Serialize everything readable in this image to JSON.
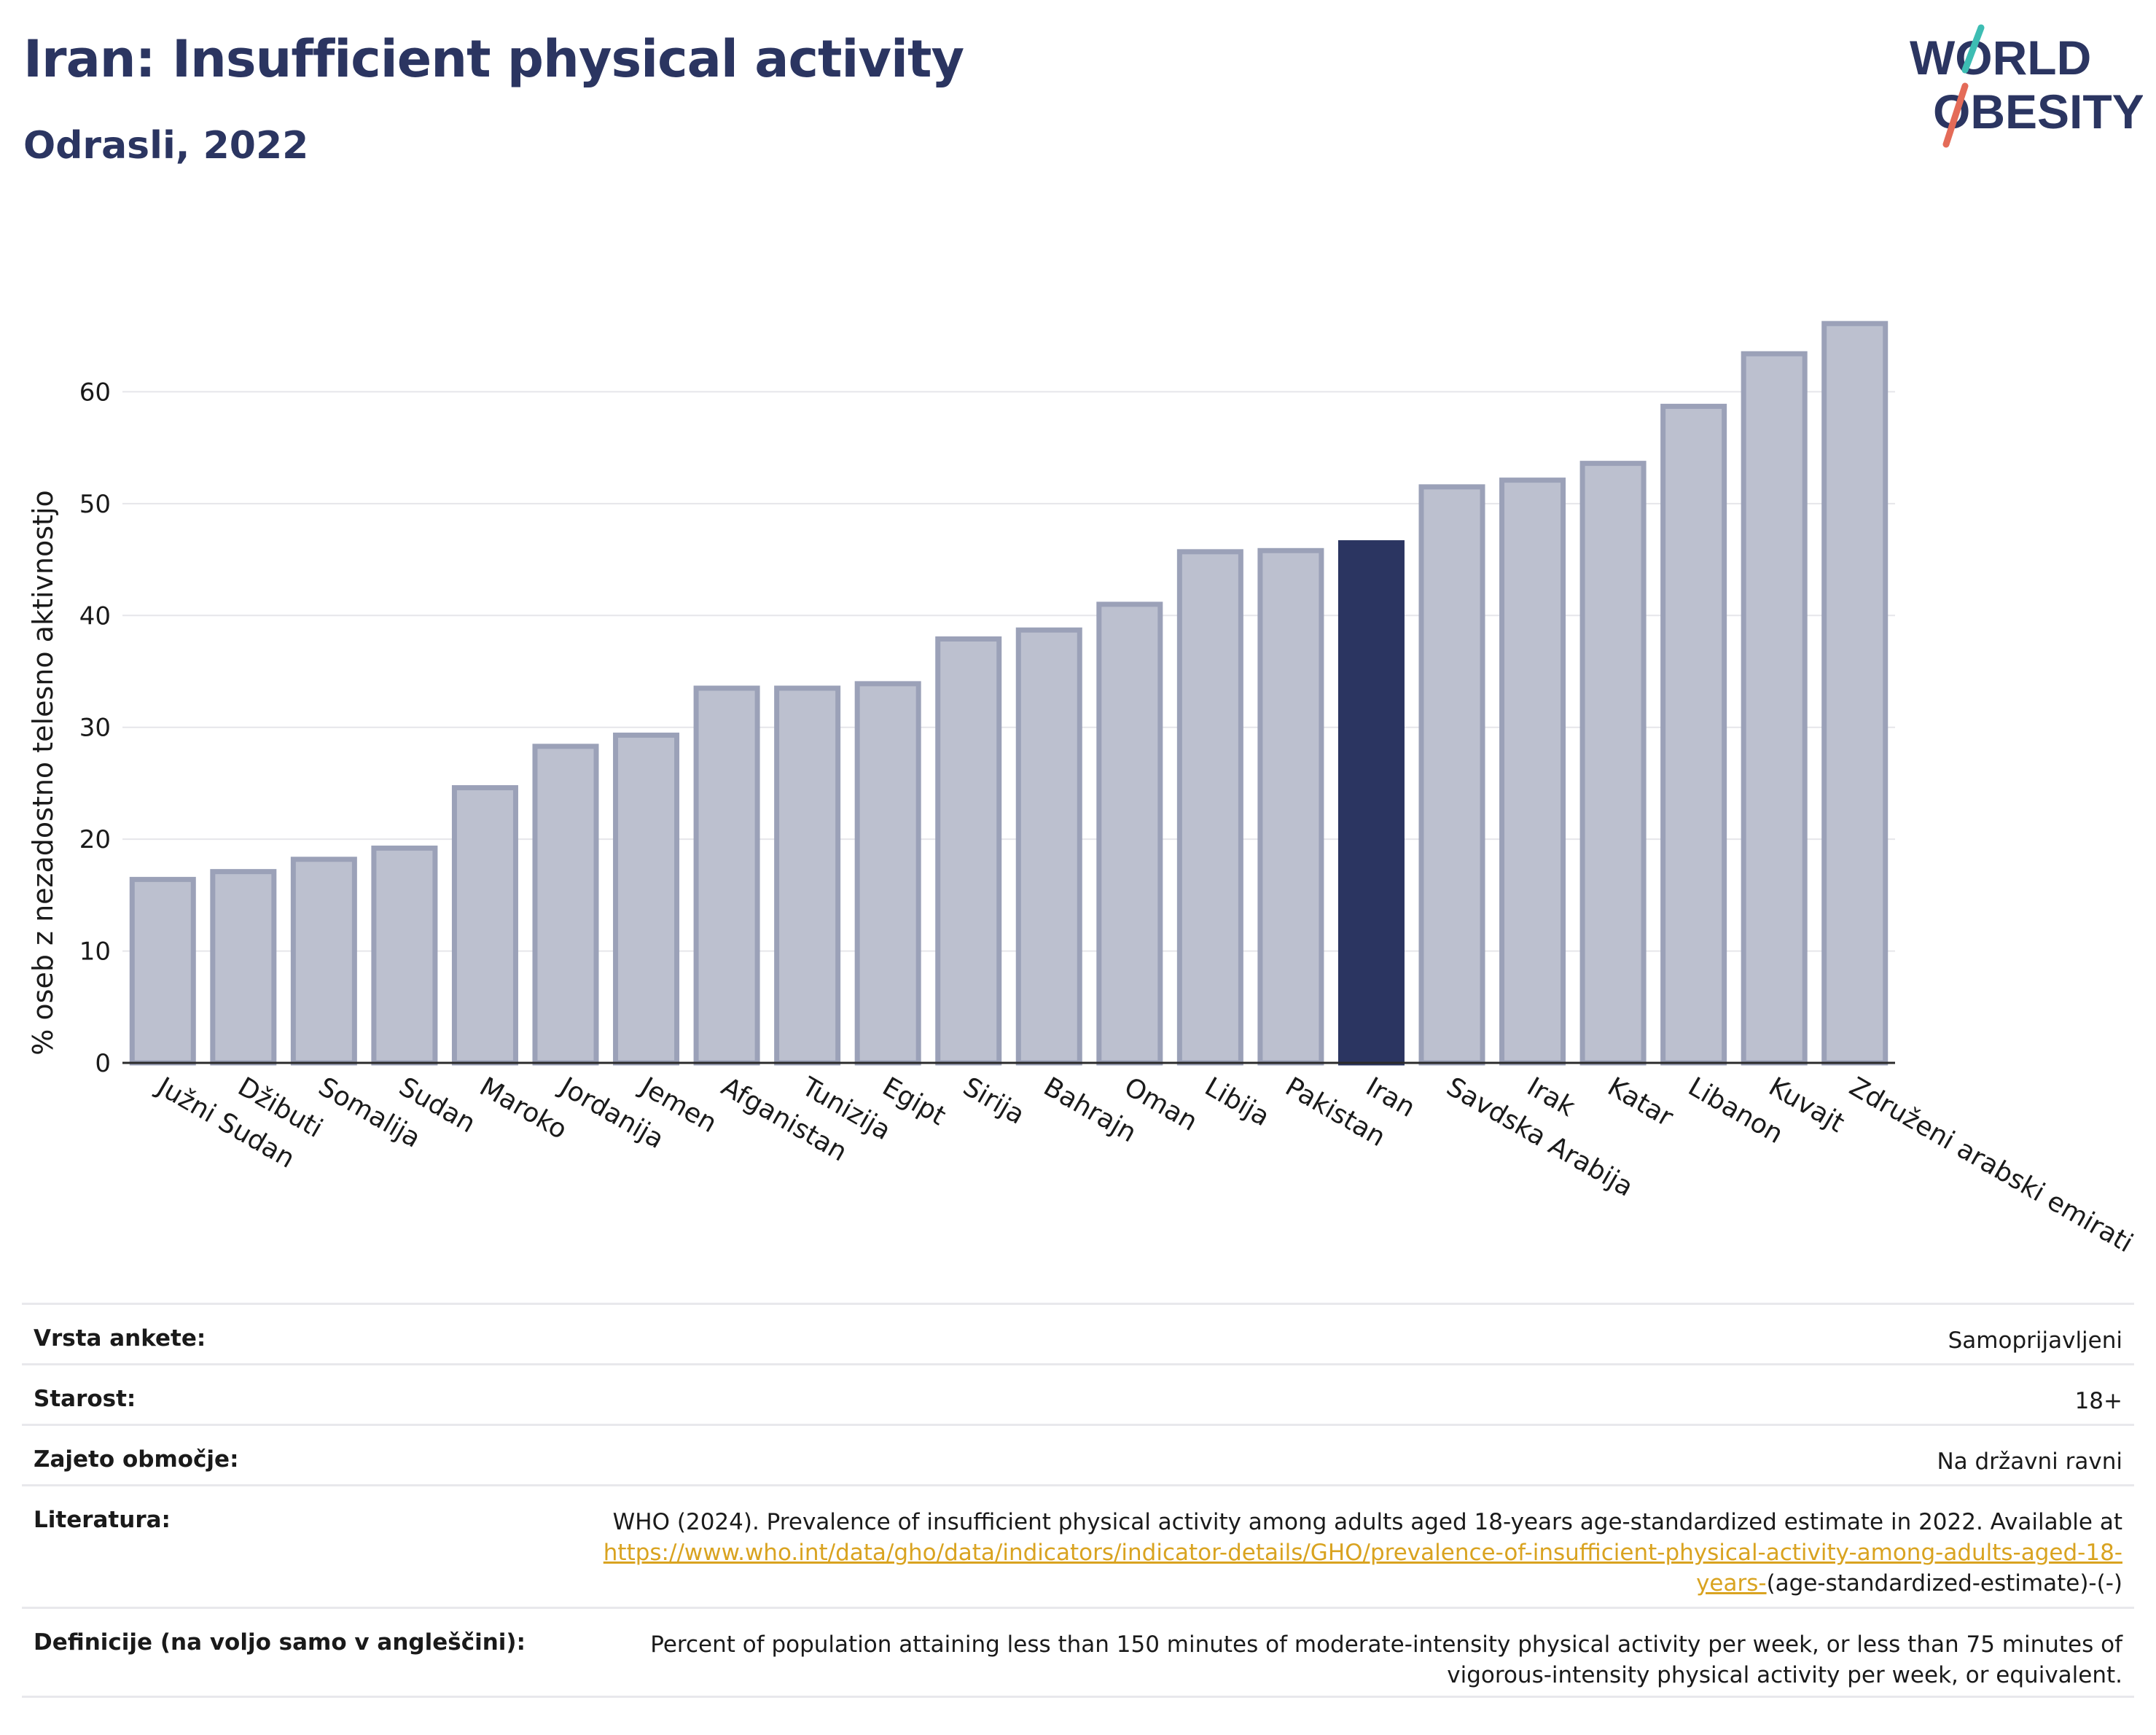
{
  "header": {
    "title": "Iran: Insufficient physical activity",
    "subtitle": "Odrasli, 2022",
    "logo_line1": "WORLD",
    "logo_line2": "OBESITY"
  },
  "chart_data": {
    "type": "bar",
    "categories": [
      "Južni Sudan",
      "Džibuti",
      "Somalija",
      "Sudan",
      "Maroko",
      "Jordanija",
      "Jemen",
      "Afganistan",
      "Tunizija",
      "Egipt",
      "Sirija",
      "Bahrajn",
      "Oman",
      "Libija",
      "Pakistan",
      "Iran",
      "Savdska Arabija",
      "Irak",
      "Katar",
      "Libanon",
      "Kuvajt",
      "Združeni arabski emirati"
    ],
    "values": [
      16.4,
      17.1,
      18.2,
      19.2,
      24.6,
      28.3,
      29.3,
      33.5,
      33.5,
      33.9,
      37.9,
      38.7,
      41.0,
      45.7,
      45.8,
      46.5,
      51.5,
      52.1,
      53.6,
      58.7,
      63.4,
      66.1
    ],
    "highlight": "Iran",
    "ylabel": "% oseb z nezadostno telesno aktivnostjo",
    "ylim": [
      0,
      70
    ],
    "yticks": [
      0,
      10,
      20,
      30,
      40,
      50,
      60
    ],
    "grid": true,
    "colors": {
      "bar": "#bcc0cf",
      "bar_border": "#9ba1b8",
      "highlight": "#2b3561"
    }
  },
  "meta": {
    "rows": [
      {
        "label": "Vrsta ankete:",
        "value": "Samoprijavljeni"
      },
      {
        "label": "Starost:",
        "value": "18+"
      },
      {
        "label": "Zajeto območje:",
        "value": "Na državni ravni"
      },
      {
        "label": "Literatura:",
        "value": "WHO (2024). Prevalence of insufficient physical activity among adults aged 18-years age-standardized estimate in 2022. Available at",
        "link": "https://www.who.int/data/gho/data/indicators/indicator-details/GHO/prevalence-of-insufficient-physical-activity-among-adults-aged-18-years-",
        "suffix": "(age-standardized-estimate)-(-)"
      },
      {
        "label": "Definicije (na voljo samo v angleščini):",
        "value": "Percent of population attaining less than 150 minutes of moderate-intensity physical activity per week, or less than 75 minutes of vigorous-intensity physical activity per week, or equivalent."
      }
    ]
  }
}
